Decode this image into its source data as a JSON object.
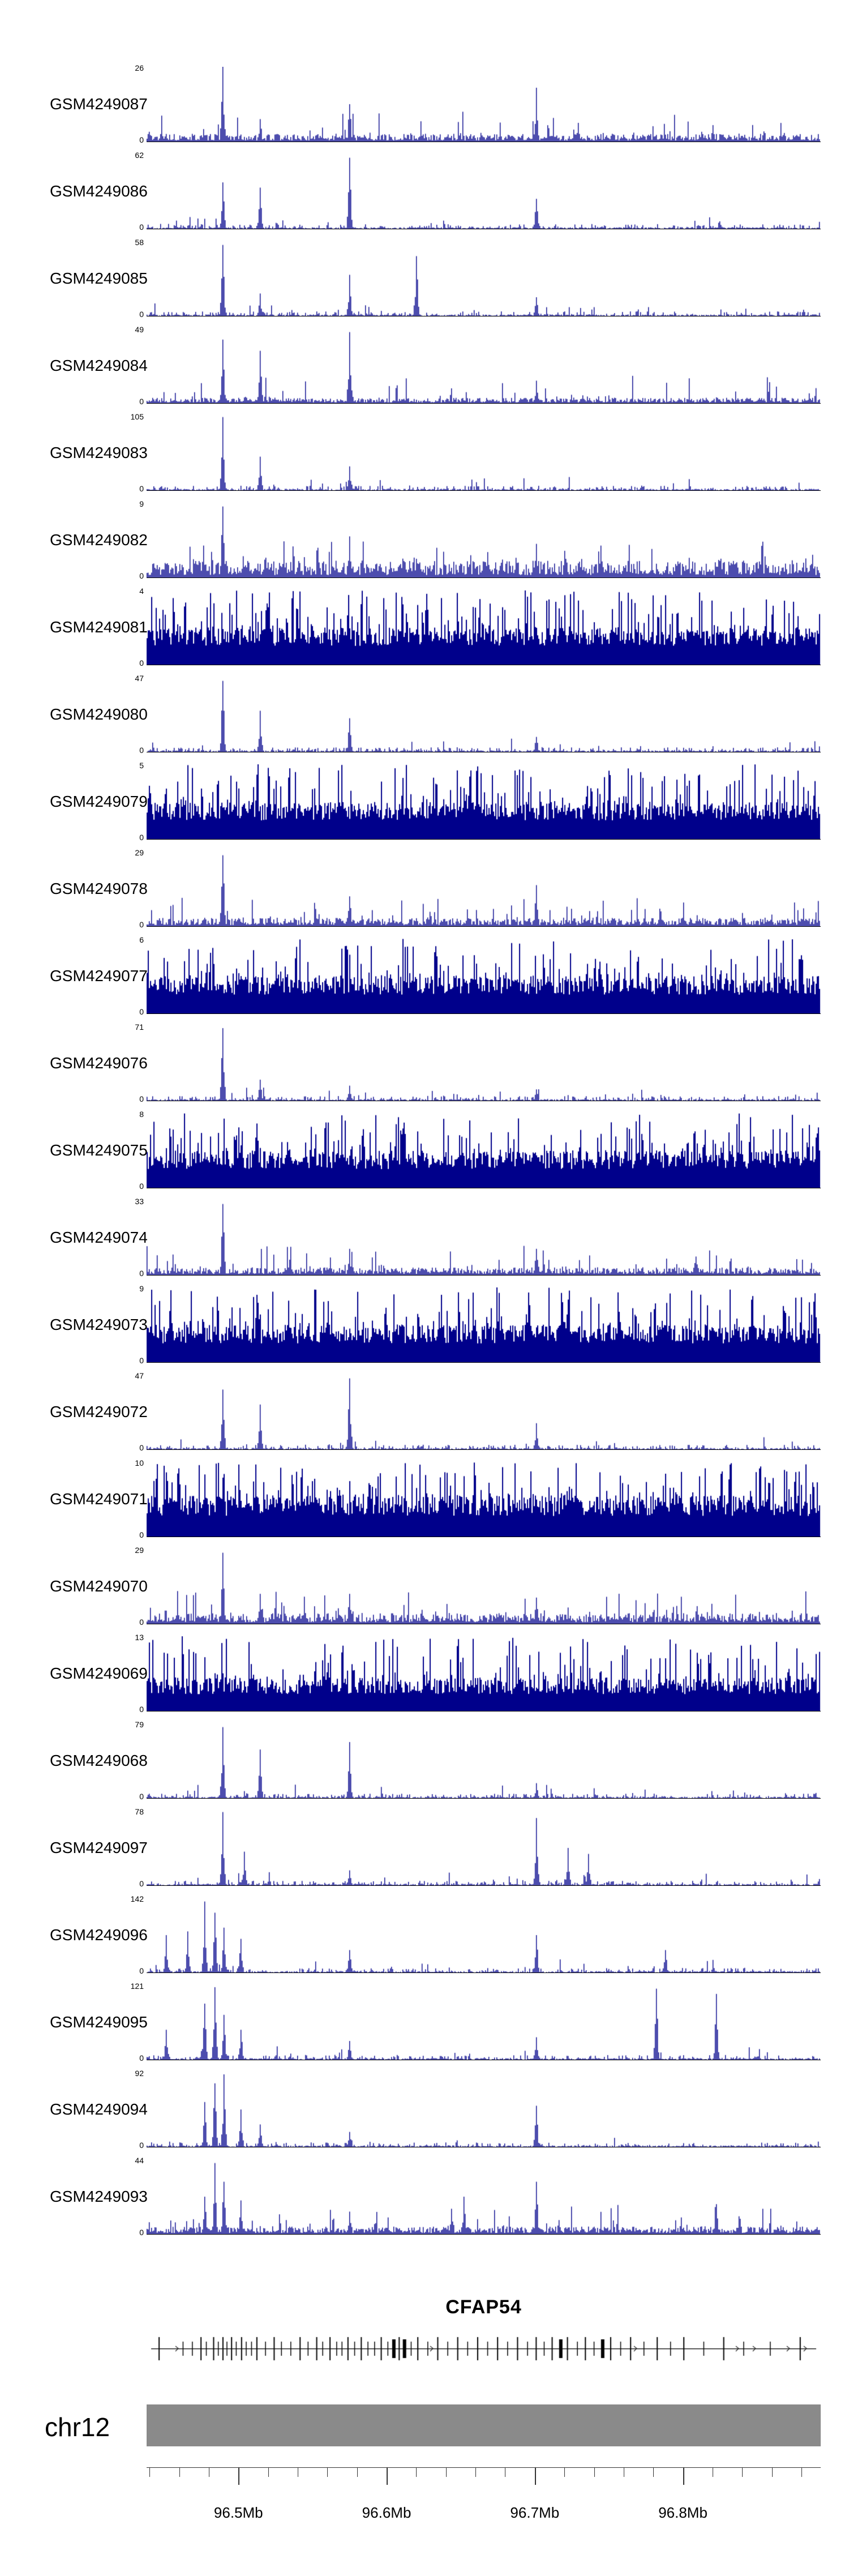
{
  "colors": {
    "signal": "#00008b",
    "ideogram": "#8a8a8a",
    "axis": "#000000",
    "ruler": "#333333"
  },
  "labels": {
    "y_zero": "0"
  },
  "chart_data": {
    "type": "genome-coverage-tracks",
    "region": {
      "chrom": "chr12",
      "start_mb": 96.438,
      "end_mb": 96.893
    },
    "ruler": {
      "unit": "Mb",
      "minor_step_mb": 0.02,
      "major_ticks": [
        {
          "mb": 96.5,
          "label": "96.5Mb"
        },
        {
          "mb": 96.6,
          "label": "96.6Mb"
        },
        {
          "mb": 96.7,
          "label": "96.7Mb"
        },
        {
          "mb": 96.8,
          "label": "96.8Mb"
        }
      ]
    },
    "gene": {
      "name": "CFAP54",
      "arrow_direction": "right",
      "exons": [
        [
          0.012,
          1
        ],
        [
          0.048,
          0
        ],
        [
          0.062,
          0
        ],
        [
          0.075,
          1
        ],
        [
          0.083,
          0
        ],
        [
          0.094,
          1
        ],
        [
          0.101,
          0
        ],
        [
          0.108,
          1
        ],
        [
          0.114,
          0
        ],
        [
          0.121,
          1
        ],
        [
          0.128,
          0
        ],
        [
          0.136,
          1
        ],
        [
          0.143,
          0
        ],
        [
          0.151,
          0
        ],
        [
          0.159,
          1
        ],
        [
          0.172,
          0
        ],
        [
          0.185,
          1
        ],
        [
          0.196,
          0
        ],
        [
          0.21,
          0
        ],
        [
          0.224,
          1
        ],
        [
          0.236,
          0
        ],
        [
          0.249,
          1
        ],
        [
          0.258,
          0
        ],
        [
          0.269,
          1
        ],
        [
          0.279,
          0
        ],
        [
          0.287,
          0
        ],
        [
          0.296,
          1
        ],
        [
          0.306,
          0
        ],
        [
          0.316,
          1
        ],
        [
          0.326,
          0
        ],
        [
          0.336,
          0
        ],
        [
          0.346,
          1
        ],
        [
          0.356,
          0
        ],
        [
          0.365,
          2
        ],
        [
          0.373,
          1
        ],
        [
          0.381,
          2
        ],
        [
          0.391,
          0
        ],
        [
          0.401,
          1
        ],
        [
          0.416,
          0
        ],
        [
          0.431,
          1
        ],
        [
          0.446,
          0
        ],
        [
          0.461,
          1
        ],
        [
          0.476,
          0
        ],
        [
          0.491,
          1
        ],
        [
          0.506,
          0
        ],
        [
          0.521,
          1
        ],
        [
          0.536,
          0
        ],
        [
          0.551,
          1
        ],
        [
          0.566,
          0
        ],
        [
          0.579,
          1
        ],
        [
          0.591,
          0
        ],
        [
          0.603,
          1
        ],
        [
          0.616,
          2
        ],
        [
          0.626,
          1
        ],
        [
          0.641,
          0
        ],
        [
          0.653,
          1
        ],
        [
          0.666,
          0
        ],
        [
          0.679,
          2
        ],
        [
          0.691,
          1
        ],
        [
          0.706,
          0
        ],
        [
          0.721,
          1
        ],
        [
          0.741,
          0
        ],
        [
          0.761,
          1
        ],
        [
          0.781,
          0
        ],
        [
          0.801,
          1
        ],
        [
          0.831,
          0
        ],
        [
          0.861,
          1
        ],
        [
          0.891,
          0
        ],
        [
          0.931,
          0
        ],
        [
          0.976,
          1
        ]
      ]
    },
    "tracks": [
      {
        "name": "GSM4249087",
        "ymax": 26,
        "profile": "mixed",
        "noise": 0.1,
        "peaks": [
          [
            0.112,
            1.0
          ],
          [
            0.168,
            0.3
          ],
          [
            0.3,
            0.5
          ],
          [
            0.578,
            0.72
          ],
          [
            0.64,
            0.25
          ],
          [
            0.84,
            0.22
          ]
        ]
      },
      {
        "name": "GSM4249086",
        "ymax": 62,
        "profile": "sparse",
        "noise": 0.04,
        "peaks": [
          [
            0.112,
            0.62
          ],
          [
            0.168,
            0.55
          ],
          [
            0.3,
            0.95
          ],
          [
            0.578,
            0.4
          ]
        ]
      },
      {
        "name": "GSM4249085",
        "ymax": 58,
        "profile": "sparse",
        "noise": 0.04,
        "peaks": [
          [
            0.112,
            0.95
          ],
          [
            0.168,
            0.3
          ],
          [
            0.3,
            0.55
          ],
          [
            0.4,
            0.8
          ],
          [
            0.578,
            0.25
          ]
        ]
      },
      {
        "name": "GSM4249084",
        "ymax": 49,
        "profile": "mixed",
        "noise": 0.07,
        "peaks": [
          [
            0.112,
            0.85
          ],
          [
            0.168,
            0.7
          ],
          [
            0.3,
            0.95
          ],
          [
            0.578,
            0.3
          ]
        ]
      },
      {
        "name": "GSM4249083",
        "ymax": 105,
        "profile": "sparse",
        "noise": 0.04,
        "peaks": [
          [
            0.112,
            0.98
          ],
          [
            0.168,
            0.45
          ],
          [
            0.3,
            0.32
          ]
        ]
      },
      {
        "name": "GSM4249082",
        "ymax": 9,
        "profile": "mixed",
        "noise": 0.22,
        "peaks": [
          [
            0.112,
            0.95
          ],
          [
            0.3,
            0.55
          ],
          [
            0.578,
            0.45
          ]
        ]
      },
      {
        "name": "GSM4249081",
        "ymax": 4,
        "profile": "dense",
        "noise": 0.5,
        "peaks": []
      },
      {
        "name": "GSM4249080",
        "ymax": 47,
        "profile": "sparse",
        "noise": 0.04,
        "peaks": [
          [
            0.112,
            0.95
          ],
          [
            0.168,
            0.55
          ],
          [
            0.3,
            0.45
          ],
          [
            0.578,
            0.2
          ]
        ]
      },
      {
        "name": "GSM4249079",
        "ymax": 5,
        "profile": "dense",
        "noise": 0.5,
        "peaks": []
      },
      {
        "name": "GSM4249078",
        "ymax": 29,
        "profile": "mixed",
        "noise": 0.11,
        "peaks": [
          [
            0.112,
            0.95
          ],
          [
            0.3,
            0.4
          ],
          [
            0.578,
            0.55
          ],
          [
            0.74,
            0.2
          ]
        ]
      },
      {
        "name": "GSM4249077",
        "ymax": 6,
        "profile": "dense",
        "noise": 0.5,
        "peaks": []
      },
      {
        "name": "GSM4249076",
        "ymax": 71,
        "profile": "sparse",
        "noise": 0.04,
        "peaks": [
          [
            0.112,
            0.97
          ],
          [
            0.168,
            0.28
          ],
          [
            0.3,
            0.2
          ],
          [
            0.578,
            0.15
          ]
        ]
      },
      {
        "name": "GSM4249075",
        "ymax": 8,
        "profile": "dense",
        "noise": 0.5,
        "peaks": []
      },
      {
        "name": "GSM4249074",
        "ymax": 33,
        "profile": "mixed",
        "noise": 0.1,
        "peaks": [
          [
            0.112,
            0.95
          ],
          [
            0.3,
            0.35
          ],
          [
            0.578,
            0.35
          ]
        ]
      },
      {
        "name": "GSM4249073",
        "ymax": 9,
        "profile": "dense",
        "noise": 0.5,
        "peaks": [
          [
            0.52,
            1.0
          ]
        ]
      },
      {
        "name": "GSM4249072",
        "ymax": 47,
        "profile": "sparse",
        "noise": 0.04,
        "peaks": [
          [
            0.112,
            0.8
          ],
          [
            0.168,
            0.6
          ],
          [
            0.3,
            0.95
          ],
          [
            0.578,
            0.35
          ]
        ]
      },
      {
        "name": "GSM4249071",
        "ymax": 10,
        "profile": "dense",
        "noise": 0.55,
        "peaks": []
      },
      {
        "name": "GSM4249070",
        "ymax": 29,
        "profile": "mixed",
        "noise": 0.14,
        "peaks": [
          [
            0.112,
            0.95
          ],
          [
            0.168,
            0.4
          ],
          [
            0.3,
            0.4
          ],
          [
            0.578,
            0.35
          ]
        ]
      },
      {
        "name": "GSM4249069",
        "ymax": 13,
        "profile": "dense",
        "noise": 0.45,
        "peaks": []
      },
      {
        "name": "GSM4249068",
        "ymax": 79,
        "profile": "sparse",
        "noise": 0.04,
        "peaks": [
          [
            0.112,
            0.95
          ],
          [
            0.168,
            0.65
          ],
          [
            0.3,
            0.75
          ],
          [
            0.578,
            0.2
          ]
        ]
      },
      {
        "name": "GSM4249097",
        "ymax": 78,
        "profile": "sparse",
        "noise": 0.04,
        "peaks": [
          [
            0.112,
            0.98
          ],
          [
            0.145,
            0.45
          ],
          [
            0.3,
            0.2
          ],
          [
            0.578,
            0.9
          ],
          [
            0.625,
            0.5
          ],
          [
            0.655,
            0.42
          ]
        ]
      },
      {
        "name": "GSM4249096",
        "ymax": 142,
        "profile": "sparse",
        "noise": 0.04,
        "peaks": [
          [
            0.028,
            0.5
          ],
          [
            0.06,
            0.55
          ],
          [
            0.085,
            0.95
          ],
          [
            0.1,
            0.8
          ],
          [
            0.115,
            0.6
          ],
          [
            0.14,
            0.45
          ],
          [
            0.3,
            0.3
          ],
          [
            0.578,
            0.5
          ],
          [
            0.77,
            0.3
          ]
        ]
      },
      {
        "name": "GSM4249095",
        "ymax": 121,
        "profile": "sparse",
        "noise": 0.04,
        "peaks": [
          [
            0.028,
            0.4
          ],
          [
            0.085,
            0.75
          ],
          [
            0.1,
            0.97
          ],
          [
            0.115,
            0.6
          ],
          [
            0.14,
            0.4
          ],
          [
            0.3,
            0.25
          ],
          [
            0.578,
            0.3
          ],
          [
            0.757,
            0.95
          ],
          [
            0.845,
            0.88
          ]
        ]
      },
      {
        "name": "GSM4249094",
        "ymax": 92,
        "profile": "sparse",
        "noise": 0.04,
        "peaks": [
          [
            0.085,
            0.6
          ],
          [
            0.1,
            0.85
          ],
          [
            0.115,
            0.97
          ],
          [
            0.14,
            0.5
          ],
          [
            0.168,
            0.3
          ],
          [
            0.3,
            0.2
          ],
          [
            0.578,
            0.55
          ]
        ]
      },
      {
        "name": "GSM4249093",
        "ymax": 44,
        "profile": "mixed",
        "noise": 0.1,
        "peaks": [
          [
            0.085,
            0.5
          ],
          [
            0.1,
            0.95
          ],
          [
            0.115,
            0.7
          ],
          [
            0.14,
            0.45
          ],
          [
            0.3,
            0.3
          ],
          [
            0.47,
            0.5
          ],
          [
            0.578,
            0.7
          ],
          [
            0.845,
            0.4
          ]
        ]
      }
    ]
  }
}
